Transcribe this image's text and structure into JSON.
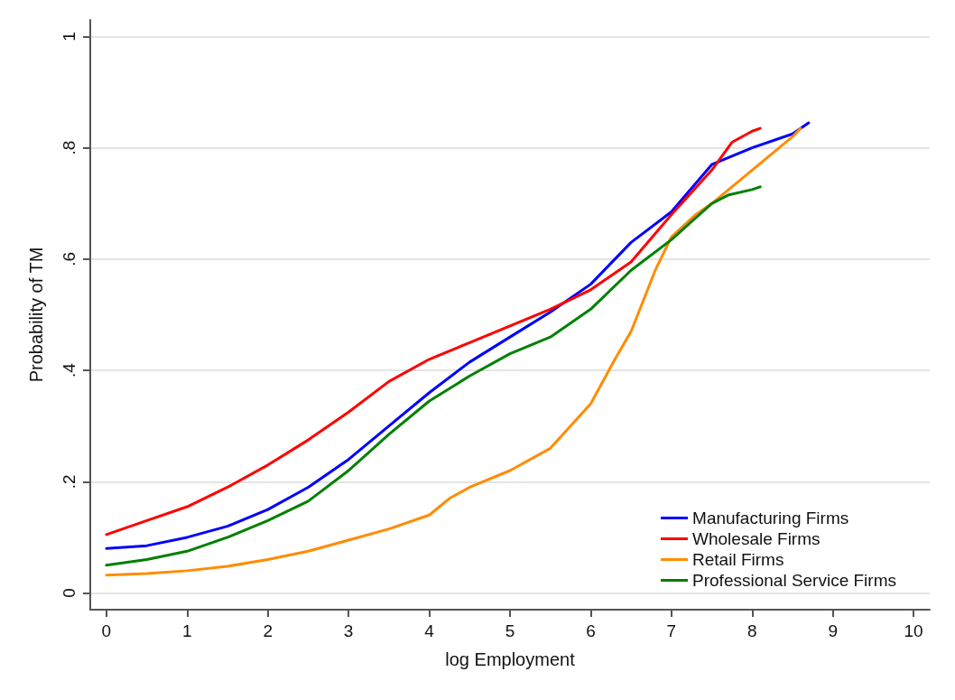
{
  "chart_data": {
    "type": "line",
    "xlabel": "log Employment",
    "ylabel": "Probability of TM",
    "xlim": [
      -0.2,
      10.2
    ],
    "xticks": [
      0,
      1,
      2,
      3,
      4,
      5,
      6,
      7,
      8,
      9,
      10
    ],
    "ylim": [
      -0.03,
      1.03
    ],
    "yticks": [
      {
        "value": 0,
        "label": "0"
      },
      {
        "value": 0.2,
        "label": ".2"
      },
      {
        "value": 0.4,
        "label": ".4"
      },
      {
        "value": 0.6,
        "label": ".6"
      },
      {
        "value": 0.8,
        "label": ".8"
      },
      {
        "value": 1,
        "label": "1"
      }
    ],
    "grid": "y",
    "legend": "bottom right",
    "marker": "none",
    "line_style": "solid",
    "series": [
      {
        "name": "Manufacturing Firms",
        "color": "#0000ff",
        "x": [
          0,
          0.5,
          1,
          1.5,
          2,
          2.5,
          3,
          3.5,
          4,
          4.5,
          5,
          5.5,
          6,
          6.5,
          7,
          7.5,
          8,
          8.5,
          8.7
        ],
        "values": [
          0.08,
          0.085,
          0.1,
          0.12,
          0.15,
          0.19,
          0.24,
          0.3,
          0.36,
          0.415,
          0.46,
          0.505,
          0.555,
          0.63,
          0.685,
          0.77,
          0.8,
          0.825,
          0.845
        ]
      },
      {
        "name": "Wholesale Firms",
        "color": "#ff0000",
        "x": [
          0,
          0.5,
          1,
          1.5,
          2,
          2.5,
          3,
          3.5,
          4,
          4.5,
          5,
          5.5,
          6,
          6.5,
          7,
          7.5,
          7.75,
          8,
          8.1
        ],
        "values": [
          0.105,
          0.13,
          0.155,
          0.19,
          0.23,
          0.275,
          0.325,
          0.38,
          0.42,
          0.45,
          0.48,
          0.51,
          0.545,
          0.595,
          0.68,
          0.76,
          0.81,
          0.83,
          0.835
        ]
      },
      {
        "name": "Retail Firms",
        "color": "#ff8c00",
        "x": [
          0,
          0.5,
          1,
          1.5,
          2,
          2.5,
          3,
          3.5,
          4,
          4.25,
          4.5,
          5,
          5.5,
          6,
          6.3,
          6.5,
          6.8,
          7,
          7.3,
          7.5,
          8,
          8.5,
          8.6
        ],
        "values": [
          0.032,
          0.035,
          0.04,
          0.048,
          0.06,
          0.075,
          0.095,
          0.115,
          0.14,
          0.17,
          0.19,
          0.22,
          0.26,
          0.34,
          0.42,
          0.47,
          0.58,
          0.64,
          0.68,
          0.7,
          0.76,
          0.82,
          0.835
        ]
      },
      {
        "name": "Professional Service Firms",
        "color": "#008000",
        "x": [
          0,
          0.5,
          1,
          1.5,
          2,
          2.5,
          3,
          3.5,
          4,
          4.5,
          5,
          5.5,
          6,
          6.5,
          7,
          7.5,
          7.7,
          8,
          8.1
        ],
        "values": [
          0.05,
          0.06,
          0.075,
          0.1,
          0.13,
          0.165,
          0.22,
          0.285,
          0.345,
          0.39,
          0.43,
          0.46,
          0.51,
          0.58,
          0.635,
          0.7,
          0.715,
          0.725,
          0.73
        ]
      }
    ]
  }
}
